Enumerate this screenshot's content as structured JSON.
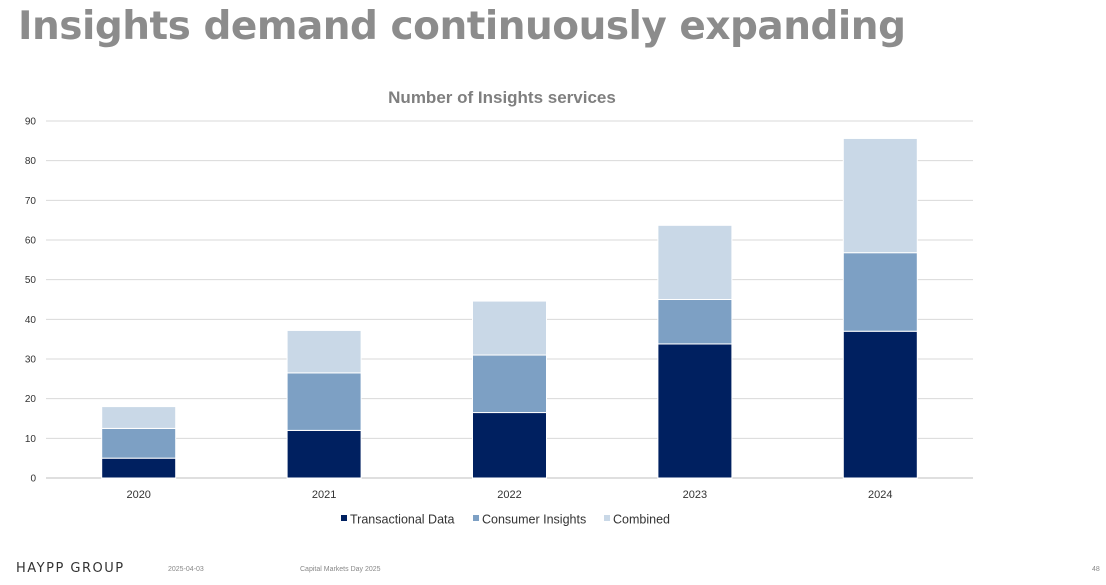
{
  "page": {
    "title": "Insights demand continuously expanding",
    "footer": {
      "logo": "HAYPP GROUP",
      "date": "2025-04-03",
      "event": "Capital Markets Day 2025",
      "page_number": "48"
    }
  },
  "chart_data": {
    "type": "bar",
    "stacked": true,
    "title": "Number of Insights services",
    "categories": [
      "2020",
      "2021",
      "2022",
      "2023",
      "2024"
    ],
    "series": [
      {
        "name": "Transactional Data",
        "color": "#002060",
        "values": [
          5,
          12,
          16.5,
          33.8,
          37
        ]
      },
      {
        "name": "Consumer Insights",
        "color": "#7da0c4",
        "values": [
          7.5,
          14.5,
          14.5,
          11.2,
          19.8
        ]
      },
      {
        "name": "Combined",
        "color": "#c9d8e7",
        "values": [
          5.5,
          10.7,
          13.6,
          18.7,
          28.8
        ]
      }
    ],
    "yticks": [
      "0",
      "10",
      "20",
      "30",
      "40",
      "50",
      "60",
      "70",
      "80",
      "90"
    ],
    "ylim": [
      0,
      90
    ],
    "grid": true,
    "legend": "bottom"
  }
}
